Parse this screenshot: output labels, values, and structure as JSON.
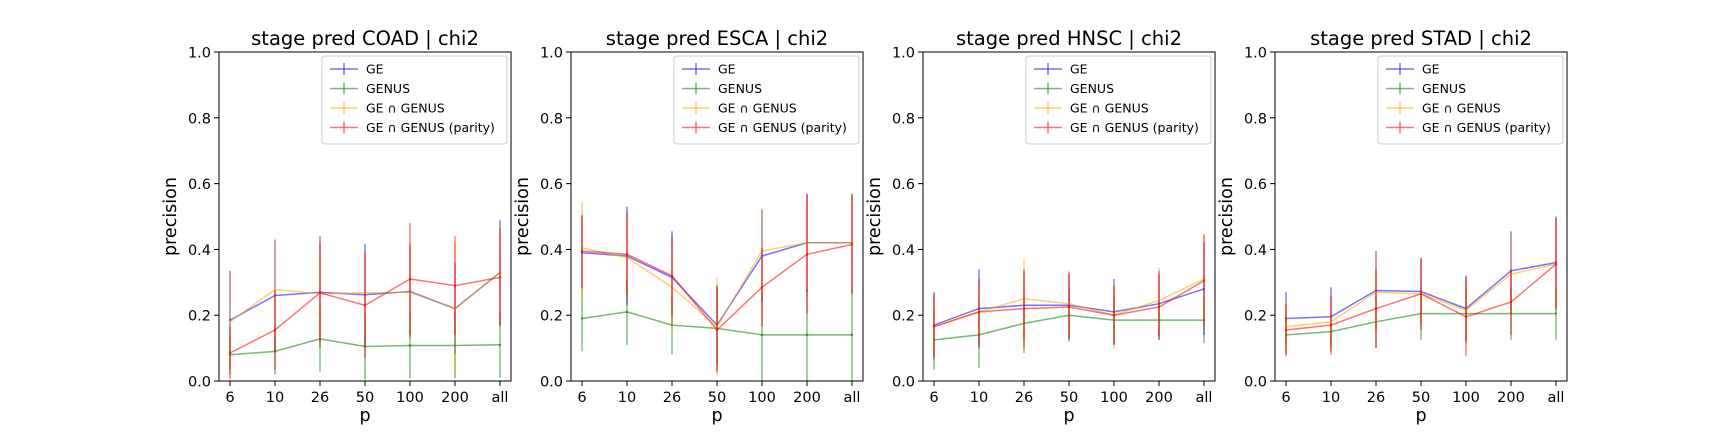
{
  "colors": {
    "GE": "#0000ff",
    "GENUS": "#008000",
    "GE ∩ GENUS": "#ffa500",
    "GE ∩ GENUS (parity)": "#ff0000"
  },
  "chart_data": [
    {
      "type": "line",
      "title": "stage pred COAD | chi2",
      "xlabel": "p",
      "ylabel": "precision",
      "categories": [
        "6",
        "10",
        "26",
        "50",
        "100",
        "200",
        "all"
      ],
      "ylim": [
        0,
        1
      ],
      "yticks": [
        "0.0",
        "0.2",
        "0.4",
        "0.6",
        "0.8",
        "1.0"
      ],
      "legend": "top-right",
      "series": [
        {
          "name": "GE",
          "values": [
            0.185,
            0.26,
            0.27,
            0.262,
            0.272,
            0.22,
            0.33
          ],
          "errors": [
            0.15,
            0.17,
            0.17,
            0.155,
            0.14,
            0.14,
            0.16
          ]
        },
        {
          "name": "GENUS",
          "values": [
            0.08,
            0.09,
            0.128,
            0.105,
            0.108,
            0.108,
            0.11
          ],
          "errors": [
            0.06,
            0.07,
            0.1,
            0.1,
            0.1,
            0.1,
            0.1
          ]
        },
        {
          "name": "GE ∩ GENUS",
          "values": [
            0.18,
            0.278,
            0.265,
            0.268,
            0.27,
            0.22,
            0.33
          ],
          "errors": [
            0.15,
            0.15,
            0.16,
            0.12,
            0.15,
            0.2,
            0.15
          ]
        },
        {
          "name": "GE ∩ GENUS (parity)",
          "values": [
            0.085,
            0.155,
            0.268,
            0.23,
            0.31,
            0.29,
            0.315
          ],
          "errors": [
            0.08,
            0.12,
            0.15,
            0.16,
            0.17,
            0.15,
            0.15
          ]
        }
      ]
    },
    {
      "type": "line",
      "title": "stage pred ESCA | chi2",
      "xlabel": "p",
      "ylabel": "precision",
      "categories": [
        "6",
        "10",
        "26",
        "50",
        "100",
        "200",
        "all"
      ],
      "ylim": [
        0,
        1
      ],
      "yticks": [
        "0.0",
        "0.2",
        "0.4",
        "0.6",
        "0.8",
        "1.0"
      ],
      "legend": "top-right",
      "series": [
        {
          "name": "GE",
          "values": [
            0.39,
            0.38,
            0.315,
            0.17,
            0.38,
            0.42,
            0.42
          ],
          "errors": [
            0.11,
            0.15,
            0.14,
            0.12,
            0.14,
            0.15,
            0.15
          ]
        },
        {
          "name": "GENUS",
          "values": [
            0.19,
            0.21,
            0.17,
            0.16,
            0.14,
            0.14,
            0.14
          ],
          "errors": [
            0.1,
            0.1,
            0.09,
            0.13,
            0.14,
            0.14,
            0.14
          ]
        },
        {
          "name": "GE ∩ GENUS",
          "values": [
            0.405,
            0.375,
            0.285,
            0.165,
            0.395,
            0.42,
            0.42
          ],
          "errors": [
            0.14,
            0.12,
            0.12,
            0.15,
            0.13,
            0.14,
            0.15
          ]
        },
        {
          "name": "GE ∩ GENUS (parity)",
          "values": [
            0.395,
            0.385,
            0.32,
            0.155,
            0.285,
            0.385,
            0.415
          ],
          "errors": [
            0.11,
            0.13,
            0.12,
            0.13,
            0.12,
            0.18,
            0.15
          ]
        }
      ]
    },
    {
      "type": "line",
      "title": "stage pred HNSC | chi2",
      "xlabel": "p",
      "ylabel": "precision",
      "categories": [
        "6",
        "10",
        "26",
        "50",
        "100",
        "200",
        "all"
      ],
      "ylim": [
        0,
        1
      ],
      "yticks": [
        "0.0",
        "0.2",
        "0.4",
        "0.6",
        "0.8",
        "1.0"
      ],
      "legend": "top-right",
      "series": [
        {
          "name": "GE",
          "values": [
            0.17,
            0.22,
            0.23,
            0.23,
            0.21,
            0.235,
            0.28
          ],
          "errors": [
            0.1,
            0.12,
            0.1,
            0.1,
            0.1,
            0.1,
            0.14
          ]
        },
        {
          "name": "GENUS",
          "values": [
            0.125,
            0.14,
            0.175,
            0.2,
            0.185,
            0.185,
            0.185
          ],
          "errors": [
            0.09,
            0.1,
            0.09,
            0.08,
            0.07,
            0.06,
            0.07
          ]
        },
        {
          "name": "GE ∩ GENUS",
          "values": [
            0.165,
            0.21,
            0.25,
            0.235,
            0.2,
            0.245,
            0.31
          ],
          "errors": [
            0.1,
            0.08,
            0.12,
            0.1,
            0.1,
            0.1,
            0.14
          ]
        },
        {
          "name": "GE ∩ GENUS (parity)",
          "values": [
            0.165,
            0.21,
            0.22,
            0.225,
            0.2,
            0.225,
            0.305
          ],
          "errors": [
            0.1,
            0.1,
            0.12,
            0.1,
            0.09,
            0.1,
            0.14
          ]
        }
      ]
    },
    {
      "type": "line",
      "title": "stage pred STAD | chi2",
      "xlabel": "p",
      "ylabel": "precision",
      "categories": [
        "6",
        "10",
        "26",
        "50",
        "100",
        "200",
        "all"
      ],
      "ylim": [
        0,
        1
      ],
      "yticks": [
        "0.0",
        "0.2",
        "0.4",
        "0.6",
        "0.8",
        "1.0"
      ],
      "legend": "top-right",
      "series": [
        {
          "name": "GE",
          "values": [
            0.19,
            0.195,
            0.275,
            0.272,
            0.22,
            0.335,
            0.36
          ],
          "errors": [
            0.08,
            0.09,
            0.12,
            0.1,
            0.1,
            0.12,
            0.14
          ]
        },
        {
          "name": "GENUS",
          "values": [
            0.14,
            0.15,
            0.18,
            0.205,
            0.205,
            0.205,
            0.205
          ],
          "errors": [
            0.06,
            0.06,
            0.08,
            0.08,
            0.08,
            0.08,
            0.08
          ]
        },
        {
          "name": "GE ∩ GENUS",
          "values": [
            0.165,
            0.18,
            0.27,
            0.265,
            0.215,
            0.325,
            0.355
          ],
          "errors": [
            0.08,
            0.08,
            0.12,
            0.1,
            0.1,
            0.12,
            0.14
          ]
        },
        {
          "name": "GE ∩ GENUS (parity)",
          "values": [
            0.155,
            0.17,
            0.22,
            0.265,
            0.195,
            0.24,
            0.355
          ],
          "errors": [
            0.08,
            0.09,
            0.12,
            0.11,
            0.12,
            0.1,
            0.14
          ]
        }
      ]
    }
  ]
}
